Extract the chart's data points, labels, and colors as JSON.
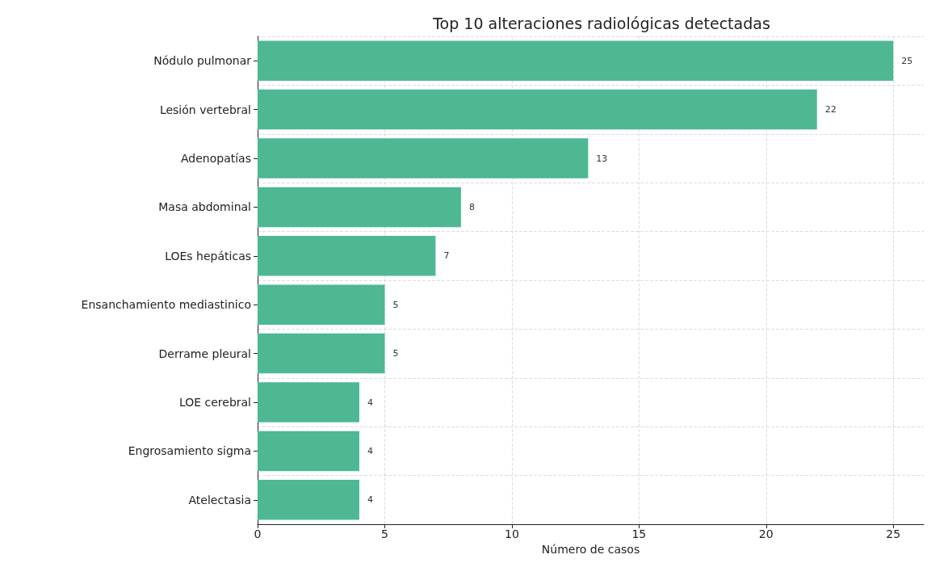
{
  "chart_data": {
    "type": "bar",
    "orientation": "horizontal",
    "title": "Top 10 alteraciones radiológicas detectadas",
    "xlabel": "Número de casos",
    "categories": [
      "Nódulo pulmonar",
      "Lesión vertebral",
      "Adenopatías",
      "Masa abdominal",
      "LOEs hepáticas",
      "Ensanchamiento mediastinico",
      "Derrame pleural",
      "LOE cerebral",
      "Engrosamiento sigma",
      "Atelectasia"
    ],
    "values": [
      25,
      22,
      13,
      8,
      7,
      5,
      5,
      4,
      4,
      4
    ],
    "color": "#4db891",
    "xlim": [
      0,
      26.2
    ],
    "xticks": [
      0,
      5,
      10,
      15,
      20,
      25
    ],
    "grid": true,
    "data_labels": true
  }
}
